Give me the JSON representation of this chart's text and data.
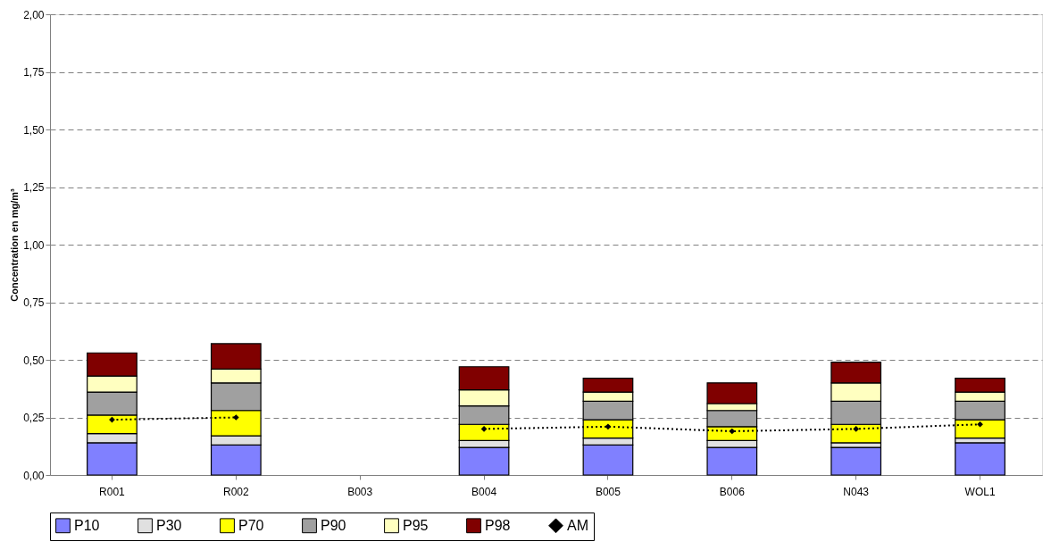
{
  "chart_data": {
    "type": "bar",
    "stacked": true,
    "ylabel": "Concentration en mg/m³",
    "categories": [
      "R001",
      "R002",
      "B003",
      "B004",
      "B005",
      "B006",
      "N043",
      "WOL1"
    ],
    "series": [
      {
        "name": "P10",
        "color": "#8080ff",
        "values": [
          0.14,
          0.13,
          null,
          0.12,
          0.13,
          0.12,
          0.12,
          0.14
        ]
      },
      {
        "name": "P30",
        "color": "#e0e0e0",
        "values": [
          0.04,
          0.04,
          null,
          0.03,
          0.03,
          0.03,
          0.02,
          0.02
        ]
      },
      {
        "name": "P70",
        "color": "#ffff00",
        "values": [
          0.08,
          0.11,
          null,
          0.07,
          0.08,
          0.06,
          0.08,
          0.08
        ]
      },
      {
        "name": "P90",
        "color": "#a0a0a0",
        "values": [
          0.1,
          0.12,
          null,
          0.08,
          0.08,
          0.07,
          0.1,
          0.08
        ]
      },
      {
        "name": "P95",
        "color": "#ffffc0",
        "values": [
          0.07,
          0.06,
          null,
          0.07,
          0.04,
          0.03,
          0.08,
          0.04
        ]
      },
      {
        "name": "P98",
        "color": "#800000",
        "values": [
          0.1,
          0.11,
          null,
          0.1,
          0.06,
          0.09,
          0.09,
          0.06
        ]
      },
      {
        "name": "AM",
        "type": "line",
        "color": "#000000",
        "line_style": "dotted",
        "marker": "diamond",
        "values": [
          0.24,
          0.25,
          null,
          0.2,
          0.21,
          0.19,
          0.2,
          0.22
        ]
      }
    ],
    "ylim": [
      0,
      2
    ],
    "yticks": [
      {
        "value": 0,
        "label": "0,00"
      },
      {
        "value": 0.25,
        "label": "0,25"
      },
      {
        "value": 0.5,
        "label": "0,50"
      },
      {
        "value": 0.75,
        "label": "0,75"
      },
      {
        "value": 1,
        "label": "1,00"
      },
      {
        "value": 1.25,
        "label": "1,25"
      },
      {
        "value": 1.5,
        "label": "1,50"
      },
      {
        "value": 1.75,
        "label": "1,75"
      },
      {
        "value": 2,
        "label": "2,00"
      }
    ],
    "grid": "y",
    "legend": "bottom"
  }
}
